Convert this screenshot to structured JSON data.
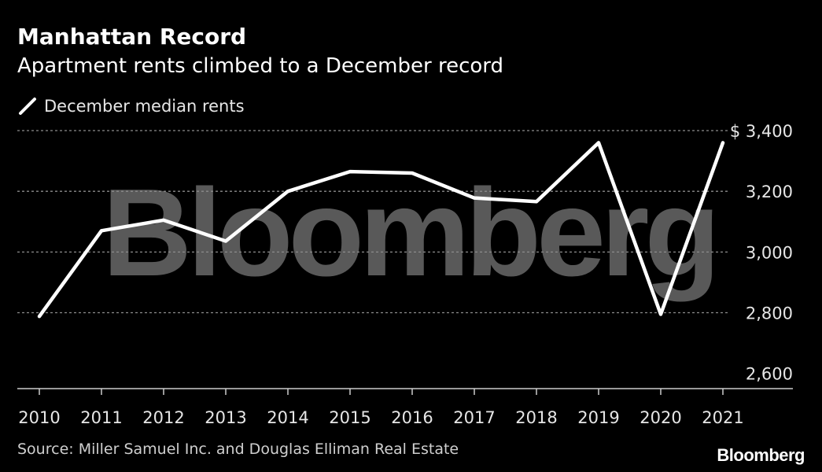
{
  "header": {
    "title": "Manhattan Record",
    "subtitle": "Apartment rents climbed to a December record"
  },
  "footer": {
    "source": "Source: Miller Samuel Inc. and Douglas Elliman Real Estate",
    "brand": "Bloomberg"
  },
  "watermark": "Bloomberg",
  "colors": {
    "background": "#000000",
    "line": "#ffffff",
    "grid": "#8c8c8c",
    "text": "#ffffff",
    "watermark": "#595959"
  },
  "chart_data": {
    "type": "line",
    "x": [
      "2010",
      "2011",
      "2012",
      "2013",
      "2014",
      "2015",
      "2016",
      "2017",
      "2018",
      "2019",
      "2020",
      "2021"
    ],
    "series": [
      {
        "name": "December median rents",
        "values": [
          2788,
          3070,
          3105,
          3036,
          3200,
          3265,
          3260,
          3178,
          3166,
          3360,
          2795,
          3360
        ]
      }
    ],
    "ylim": [
      2550,
      3400
    ],
    "yticks": [
      2600,
      2800,
      3000,
      3200,
      3400
    ],
    "ytick_labels": [
      "2,600",
      "2,800",
      "3,000",
      "3,200",
      "$ 3,400"
    ],
    "grid": true,
    "legend": "top-left",
    "y_axis_position": "right"
  }
}
